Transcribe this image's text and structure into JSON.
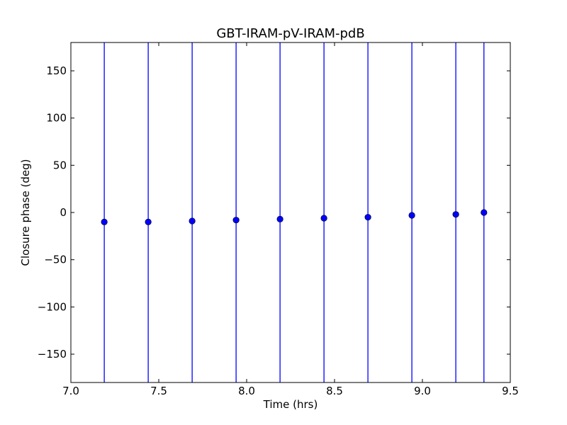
{
  "chart_data": {
    "type": "scatter",
    "title": "GBT-IRAM-pV-IRAM-pdB",
    "xlabel": "Time (hrs)",
    "ylabel": "Closure phase (deg)",
    "xlim": [
      7.0,
      9.5
    ],
    "ylim": [
      -180,
      180
    ],
    "xticks": [
      7.0,
      7.5,
      8.0,
      8.5,
      9.0,
      9.5
    ],
    "xtick_labels": [
      "7.0",
      "7.5",
      "8.0",
      "8.5",
      "9.0",
      "9.5"
    ],
    "yticks": [
      150,
      100,
      50,
      0,
      -50,
      -100,
      -150
    ],
    "ytick_labels": [
      "150",
      "100",
      "50",
      "0",
      "−50",
      "−100",
      "−150"
    ],
    "grid": false,
    "error_bars": "vertical, spanning full y-range",
    "colors": {
      "series": "#0000ff",
      "axes": "#000000"
    },
    "series": [
      {
        "x": [
          7.19,
          7.44,
          7.69,
          7.94,
          8.19,
          8.44,
          8.69,
          8.94,
          9.19,
          9.35
        ],
        "y": [
          -10,
          -10,
          -9,
          -8,
          -7,
          -6,
          -5,
          -3,
          -2,
          0
        ]
      }
    ]
  }
}
